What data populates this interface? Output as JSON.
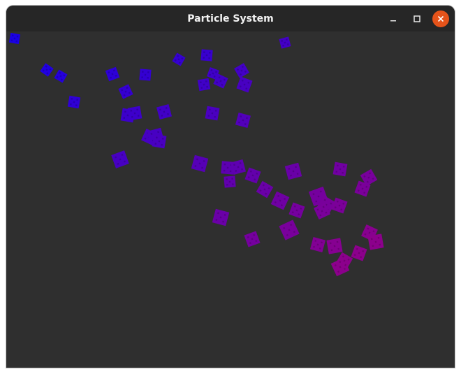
{
  "window": {
    "title": "Particle System"
  },
  "controls": {
    "minimize_icon": "minimize-icon",
    "maximize_icon": "maximize-icon",
    "close_icon": "close-icon"
  },
  "colors": {
    "titlebar": "#262626",
    "canvas": "#2f2f2f",
    "close_button": "#e5531a",
    "particle_start": "#1a00e6",
    "particle_end": "#8a008a"
  }
}
